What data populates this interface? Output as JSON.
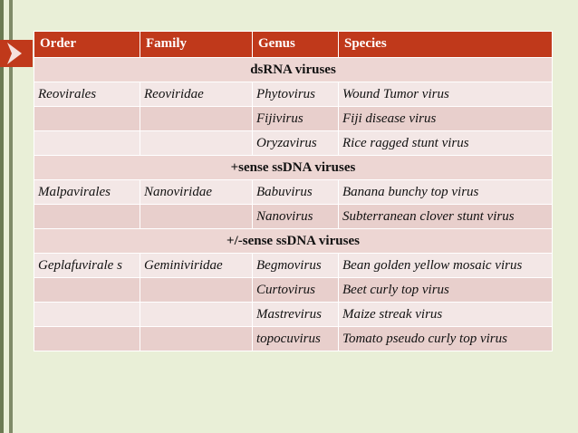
{
  "headers": [
    "Order",
    "Family",
    "Genus",
    "Species"
  ],
  "rows": [
    {
      "type": "group",
      "label": "dsRNA viruses"
    },
    {
      "type": "data",
      "order": "Reovirales",
      "family": "Reoviridae",
      "genus": "Phytovirus",
      "species": "Wound Tumor virus"
    },
    {
      "type": "data",
      "order": "",
      "family": "",
      "genus": "Fijivirus",
      "species": "Fiji disease virus"
    },
    {
      "type": "data",
      "order": "",
      "family": "",
      "genus": "Oryzavirus",
      "species": "Rice ragged stunt virus"
    },
    {
      "type": "group",
      "label": "+sense ssDNA viruses"
    },
    {
      "type": "data",
      "order": "Malpavirales",
      "family": "Nanoviridae",
      "genus": "Babuvirus",
      "species": "Banana bunchy top virus"
    },
    {
      "type": "data",
      "order": "",
      "family": "",
      "genus": "Nanovirus",
      "species": "Subterranean clover stunt virus"
    },
    {
      "type": "group",
      "label": "+/-sense ssDNA viruses"
    },
    {
      "type": "data",
      "order": "Geplafuvirale s",
      "family": "Geminiviridae",
      "genus": "Begmovirus",
      "species": "Bean golden yellow mosaic virus"
    },
    {
      "type": "data",
      "order": "",
      "family": "",
      "genus": "Curtovirus",
      "species": "Beet curly top virus"
    },
    {
      "type": "data",
      "order": "",
      "family": "",
      "genus": "Mastrevirus",
      "species": "Maize streak virus"
    },
    {
      "type": "data",
      "order": "",
      "family": "",
      "genus": "topocuvirus",
      "species": "Tomato pseudo curly top virus"
    }
  ],
  "colors": {
    "background": "#e9efd7",
    "header": "#c0391b",
    "group_row": "#edd6d3",
    "row_light": "#f3e7e6",
    "row_dark": "#e8cfcc",
    "accent": "#c0391b"
  },
  "icons": {
    "accent_arrow": "arrow-right-icon"
  }
}
